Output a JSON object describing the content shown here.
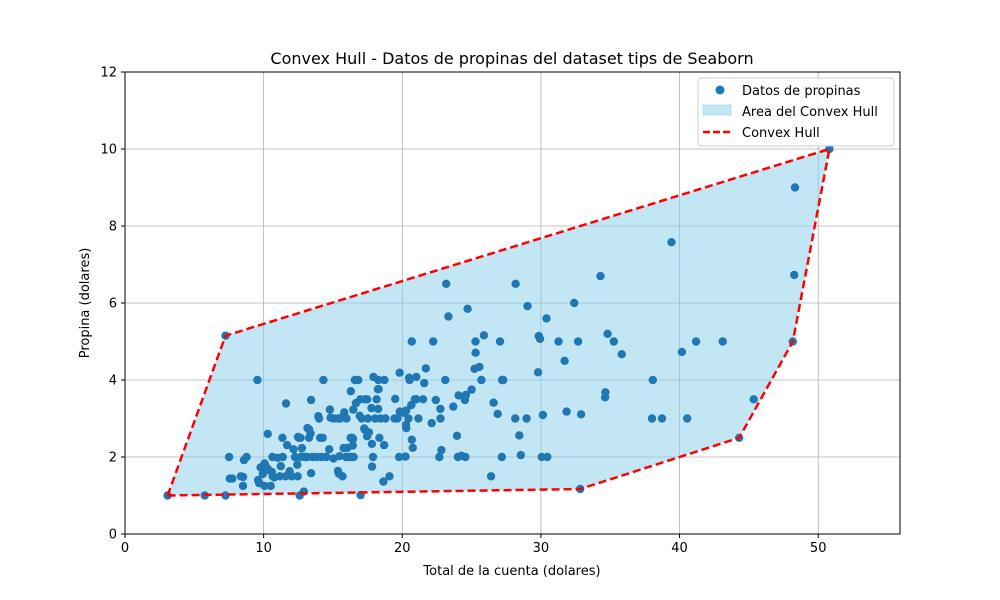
{
  "chart_data": {
    "type": "scatter",
    "title": "Convex Hull - Datos de propinas del dataset tips de Seaborn",
    "xlabel": "Total de la cuenta (dolares)",
    "ylabel": "Propina (dolares)",
    "xlim": [
      0,
      55.9
    ],
    "ylim": [
      0,
      12
    ],
    "xticks": [
      0,
      10,
      20,
      30,
      40,
      50
    ],
    "yticks": [
      0,
      2,
      4,
      6,
      8,
      10,
      12
    ],
    "grid": true,
    "legend_position": "top-right",
    "colors": {
      "points": "#1f77b4",
      "hull_fill": "#87ceeb",
      "hull_line": "#ff0000"
    },
    "legend": [
      {
        "label": "Datos de propinas",
        "kind": "marker"
      },
      {
        "label": "Area del Convex Hull",
        "kind": "patch"
      },
      {
        "label": "Convex Hull",
        "kind": "dashed-line"
      }
    ],
    "hull": [
      [
        3.07,
        1.0
      ],
      [
        32.83,
        1.17
      ],
      [
        44.3,
        2.5
      ],
      [
        48.17,
        5.0
      ],
      [
        50.81,
        10.0
      ],
      [
        7.25,
        5.15
      ],
      [
        3.07,
        1.0
      ]
    ],
    "points": [
      [
        3.07,
        1.0
      ],
      [
        5.75,
        1.0
      ],
      [
        7.25,
        1.0
      ],
      [
        12.6,
        1.0
      ],
      [
        16.99,
        1.01
      ],
      [
        32.83,
        1.17
      ],
      [
        7.25,
        5.15
      ],
      [
        9.55,
        4.0
      ],
      [
        7.51,
        2.0
      ],
      [
        7.56,
        1.44
      ],
      [
        7.74,
        1.44
      ],
      [
        8.35,
        1.5
      ],
      [
        8.52,
        1.48
      ],
      [
        8.51,
        1.25
      ],
      [
        8.58,
        1.92
      ],
      [
        8.77,
        2.0
      ],
      [
        9.6,
        1.4
      ],
      [
        9.68,
        1.32
      ],
      [
        9.78,
        1.73
      ],
      [
        9.94,
        1.56
      ],
      [
        10.07,
        1.25
      ],
      [
        10.07,
        1.83
      ],
      [
        10.29,
        2.6
      ],
      [
        10.33,
        1.67
      ],
      [
        10.34,
        1.66
      ],
      [
        10.27,
        1.71
      ],
      [
        10.51,
        1.25
      ],
      [
        10.59,
        1.61
      ],
      [
        10.63,
        2.0
      ],
      [
        10.65,
        1.5
      ],
      [
        10.77,
        1.47
      ],
      [
        11.02,
        1.98
      ],
      [
        11.17,
        1.5
      ],
      [
        11.24,
        1.76
      ],
      [
        11.35,
        2.5
      ],
      [
        11.38,
        2.0
      ],
      [
        11.59,
        1.5
      ],
      [
        11.61,
        3.39
      ],
      [
        11.69,
        2.31
      ],
      [
        11.87,
        1.63
      ],
      [
        12.03,
        1.5
      ],
      [
        12.16,
        2.2
      ],
      [
        12.26,
        2.0
      ],
      [
        12.43,
        1.8
      ],
      [
        12.46,
        1.5
      ],
      [
        12.48,
        2.52
      ],
      [
        12.54,
        2.5
      ],
      [
        12.66,
        2.5
      ],
      [
        12.69,
        2.0
      ],
      [
        12.74,
        2.01
      ],
      [
        12.76,
        2.23
      ],
      [
        12.9,
        1.1
      ],
      [
        13.0,
        2.0
      ],
      [
        13.03,
        2.0
      ],
      [
        13.13,
        2.0
      ],
      [
        13.16,
        2.75
      ],
      [
        13.27,
        2.5
      ],
      [
        13.28,
        2.72
      ],
      [
        13.39,
        2.61
      ],
      [
        13.42,
        1.58
      ],
      [
        13.42,
        3.48
      ],
      [
        13.51,
        2.0
      ],
      [
        13.81,
        2.0
      ],
      [
        13.94,
        3.06
      ],
      [
        14.0,
        3.0
      ],
      [
        14.07,
        2.5
      ],
      [
        14.15,
        2.0
      ],
      [
        14.26,
        2.5
      ],
      [
        14.31,
        4.0
      ],
      [
        14.48,
        2.0
      ],
      [
        14.52,
        2.0
      ],
      [
        14.73,
        2.2
      ],
      [
        14.78,
        3.23
      ],
      [
        14.83,
        3.02
      ],
      [
        15.04,
        1.96
      ],
      [
        15.06,
        3.0
      ],
      [
        15.36,
        1.64
      ],
      [
        15.38,
        3.0
      ],
      [
        15.42,
        1.57
      ],
      [
        15.48,
        2.02
      ],
      [
        15.53,
        3.0
      ],
      [
        15.69,
        1.5
      ],
      [
        15.77,
        2.23
      ],
      [
        15.81,
        3.16
      ],
      [
        15.95,
        2.0
      ],
      [
        15.98,
        3.0
      ],
      [
        16.0,
        2.0
      ],
      [
        16.04,
        2.24
      ],
      [
        16.21,
        2.0
      ],
      [
        16.27,
        2.5
      ],
      [
        16.29,
        3.71
      ],
      [
        16.31,
        2.0
      ],
      [
        16.4,
        2.5
      ],
      [
        16.43,
        2.3
      ],
      [
        16.45,
        2.47
      ],
      [
        16.47,
        3.23
      ],
      [
        16.49,
        2.0
      ],
      [
        16.58,
        4.0
      ],
      [
        16.66,
        3.4
      ],
      [
        16.82,
        4.0
      ],
      [
        16.93,
        3.07
      ],
      [
        16.97,
        3.5
      ],
      [
        17.07,
        3.0
      ],
      [
        17.26,
        2.74
      ],
      [
        17.29,
        2.71
      ],
      [
        17.31,
        3.5
      ],
      [
        17.46,
        2.54
      ],
      [
        17.47,
        3.5
      ],
      [
        17.51,
        3.0
      ],
      [
        17.59,
        2.64
      ],
      [
        17.78,
        3.27
      ],
      [
        17.81,
        2.34
      ],
      [
        17.82,
        1.75
      ],
      [
        17.89,
        2.0
      ],
      [
        17.92,
        4.08
      ],
      [
        18.04,
        3.0
      ],
      [
        18.15,
        3.5
      ],
      [
        18.24,
        3.76
      ],
      [
        18.26,
        3.25
      ],
      [
        18.28,
        4.0
      ],
      [
        18.29,
        3.76
      ],
      [
        18.35,
        2.5
      ],
      [
        18.43,
        3.0
      ],
      [
        18.64,
        1.36
      ],
      [
        18.69,
        2.31
      ],
      [
        18.71,
        4.0
      ],
      [
        18.78,
        3.0
      ],
      [
        19.08,
        1.5
      ],
      [
        19.44,
        3.0
      ],
      [
        19.49,
        3.51
      ],
      [
        19.65,
        3.0
      ],
      [
        19.77,
        2.0
      ],
      [
        19.81,
        4.19
      ],
      [
        19.82,
        3.18
      ],
      [
        20.08,
        3.15
      ],
      [
        20.23,
        2.01
      ],
      [
        20.27,
        2.83
      ],
      [
        20.29,
        3.21
      ],
      [
        20.29,
        2.75
      ],
      [
        20.45,
        3.0
      ],
      [
        20.49,
        4.06
      ],
      [
        20.53,
        4.0
      ],
      [
        20.65,
        3.35
      ],
      [
        20.69,
        2.45
      ],
      [
        20.69,
        5.0
      ],
      [
        20.76,
        2.24
      ],
      [
        20.9,
        3.5
      ],
      [
        21.01,
        3.5
      ],
      [
        21.01,
        4.08
      ],
      [
        21.16,
        3.0
      ],
      [
        21.5,
        3.5
      ],
      [
        21.58,
        3.92
      ],
      [
        21.7,
        4.3
      ],
      [
        22.12,
        2.88
      ],
      [
        22.23,
        5.0
      ],
      [
        22.42,
        3.48
      ],
      [
        22.67,
        2.0
      ],
      [
        22.75,
        3.25
      ],
      [
        22.76,
        3.0
      ],
      [
        22.82,
        2.18
      ],
      [
        23.1,
        4.0
      ],
      [
        23.17,
        6.5
      ],
      [
        23.33,
        5.65
      ],
      [
        23.68,
        3.31
      ],
      [
        23.95,
        2.55
      ],
      [
        24.01,
        2.0
      ],
      [
        24.06,
        3.6
      ],
      [
        24.27,
        2.03
      ],
      [
        24.52,
        3.48
      ],
      [
        24.55,
        2.0
      ],
      [
        24.59,
        3.61
      ],
      [
        24.71,
        5.85
      ],
      [
        25.0,
        3.75
      ],
      [
        25.21,
        4.29
      ],
      [
        25.28,
        5.0
      ],
      [
        25.29,
        4.71
      ],
      [
        25.56,
        4.34
      ],
      [
        25.71,
        4.0
      ],
      [
        25.89,
        5.16
      ],
      [
        26.41,
        1.5
      ],
      [
        26.59,
        3.41
      ],
      [
        26.88,
        3.12
      ],
      [
        27.05,
        5.0
      ],
      [
        27.18,
        2.0
      ],
      [
        27.2,
        4.0
      ],
      [
        27.28,
        4.0
      ],
      [
        28.15,
        3.0
      ],
      [
        28.17,
        6.5
      ],
      [
        28.44,
        2.56
      ],
      [
        28.55,
        2.05
      ],
      [
        28.97,
        3.0
      ],
      [
        29.03,
        5.92
      ],
      [
        29.8,
        4.2
      ],
      [
        29.85,
        5.14
      ],
      [
        29.93,
        5.07
      ],
      [
        30.06,
        2.0
      ],
      [
        30.14,
        3.09
      ],
      [
        30.4,
        5.6
      ],
      [
        30.46,
        2.0
      ],
      [
        31.27,
        5.0
      ],
      [
        31.71,
        4.5
      ],
      [
        31.85,
        3.18
      ],
      [
        32.4,
        6.0
      ],
      [
        32.68,
        5.0
      ],
      [
        32.9,
        3.11
      ],
      [
        34.3,
        6.7
      ],
      [
        34.63,
        3.55
      ],
      [
        34.65,
        3.68
      ],
      [
        34.81,
        5.2
      ],
      [
        35.26,
        5.0
      ],
      [
        35.83,
        4.67
      ],
      [
        38.01,
        3.0
      ],
      [
        38.07,
        4.0
      ],
      [
        38.73,
        3.0
      ],
      [
        39.42,
        7.58
      ],
      [
        40.17,
        4.73
      ],
      [
        40.55,
        3.0
      ],
      [
        41.19,
        5.0
      ],
      [
        43.11,
        5.0
      ],
      [
        44.3,
        2.5
      ],
      [
        45.35,
        3.5
      ],
      [
        48.17,
        5.0
      ],
      [
        48.27,
        6.73
      ],
      [
        48.33,
        9.0
      ],
      [
        50.81,
        10.0
      ]
    ]
  }
}
